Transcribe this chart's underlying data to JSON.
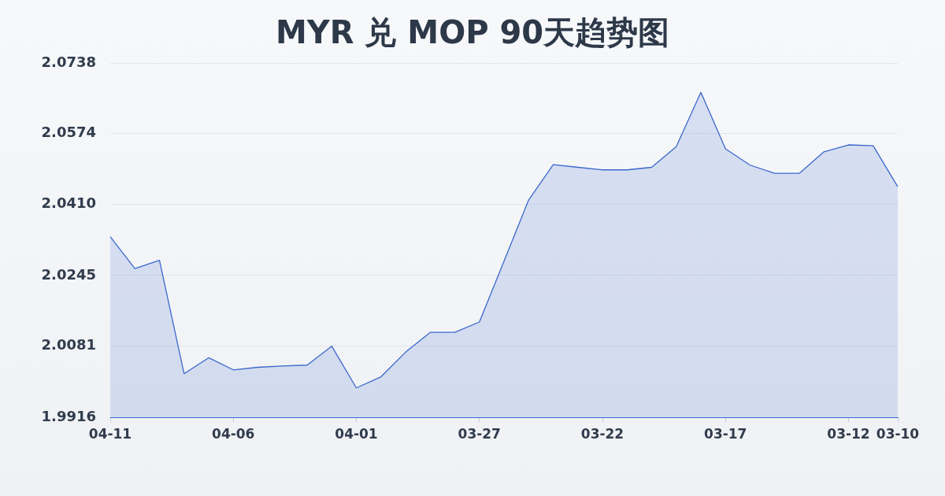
{
  "chart_data": {
    "type": "area",
    "title": "MYR 兑 MOP 90天趋势图",
    "categories": [
      "04-11",
      null,
      null,
      null,
      null,
      "04-06",
      null,
      null,
      null,
      null,
      "04-01",
      null,
      null,
      null,
      null,
      "03-27",
      null,
      null,
      null,
      null,
      "03-22",
      null,
      null,
      null,
      null,
      "03-17",
      null,
      null,
      null,
      null,
      "03-12",
      null,
      "03-10"
    ],
    "values": [
      2.0335,
      2.0261,
      2.028,
      2.0017,
      2.0054,
      2.0026,
      2.0032,
      2.0035,
      2.0037,
      2.0081,
      1.9984,
      2.001,
      2.0067,
      2.0113,
      2.0113,
      2.0137,
      2.0278,
      2.042,
      2.0502,
      2.0496,
      2.049,
      2.049,
      2.0496,
      2.0544,
      2.067,
      2.0539,
      2.0501,
      2.0482,
      2.0482,
      2.0532,
      2.0548,
      2.0546,
      2.0451
    ],
    "color": "#3a68cc",
    "ylim": [
      1.9916,
      2.0738
    ],
    "yticks": [
      1.9916,
      2.0081,
      2.0245,
      {
        "value": 2.041,
        "label": "2.0410"
      },
      2.0574,
      2.0738
    ],
    "grid": "y"
  }
}
